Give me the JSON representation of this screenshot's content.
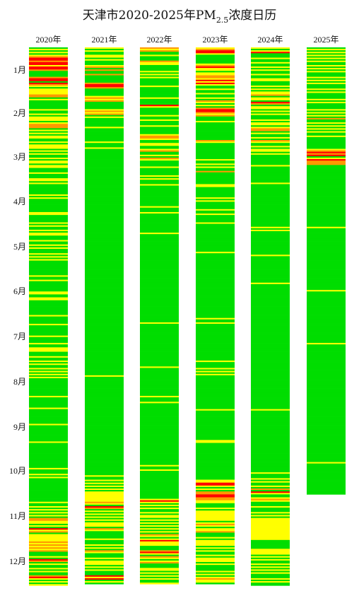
{
  "chart_data": {
    "type": "heatmap",
    "title": {
      "prefix": "天津市2020-2025年PM",
      "subscript": "2.5",
      "suffix": "浓度日历"
    },
    "years": [
      "2020年",
      "2021年",
      "2022年",
      "2023年",
      "2024年",
      "2025年"
    ],
    "months": [
      "1月",
      "2月",
      "3月",
      "4月",
      "5月",
      "6月",
      "7月",
      "8月",
      "9月",
      "10月",
      "11月",
      "12月"
    ],
    "colors": {
      "good": "#00dd00",
      "moderate": "#ffff00",
      "light": "#ff9900",
      "medium": "#ff0000",
      "heavy": "#990033"
    },
    "legend_order": [
      "good",
      "moderate",
      "light",
      "medium",
      "heavy"
    ],
    "days_recorded": [
      366,
      365,
      365,
      365,
      366,
      304
    ],
    "daily_levels": [
      "1212123443442443111134414321222233121111112112122212333121212211212221212112122122111211122121111111212111111111221111121211212211121121211121212111111111121121111111221122111111111121111121111111211112112221112112121121212121111111111112111111121111111111211111111111211111111111111111211121211111111111111112112121212133221214231222223232323111214312112121134212122211111212311121213211",
      "2121122121112313113111113443111112323111112323121111112111111111211121111111111111111111111111111111111111111111111111111111111111111111111111111111111111111111111111111111111111111111111111111111111111111111111111111111111211111111111111111111111111111111111111111111111111111111111111111112112121212122222223214312121212122213211111211121213211121222121211142412121121112121312121211111",
      "3231121113221111212121111121111111211114211111211211121111123321122112311213211112111112121112111111111111112111211111111111112111111111111111111111111111111111111111111111111111111111111211111111111111111111111111111211111111111111111112111211111111111111111111111111111111111111111121121111111111111111111242121211212212121212121321242221113421321231112212121211212321121211111",
      "2344211111123422122332424211211211213212134432311121111111111113211111111111211212113111111112211111112121111121121111121111111111111111111211111111111111111111111111111111111111111111211211111111111111111111111112111121212111111111111111111111112111111111111111111112211111111111111111111111112244212133443322111212222222123212231112122221212112122212111121212322112121211111",
      "2124111211211212112112211121212231221431221212111212212331211213211212212111111121111111111121111111111111111111111111111121211111111111111112111111111111111111211111111111111111111111111111111111111111111111111111111111111111111111111111111111112111111111111111111111111111111111111111111211121211213142112321112111212122222222222222211111122221212112121212111212111212122112111111",
      "1212121212112121211121212111212111121211112121213112121212112111111112343412433311111111111111111111111111111111111111111121111111111111111111111111111111111111111112111111111111111111111111111111111112111111111111111111111111111111111111111111111111111111111111111111111111111111112111111111111111111111"
    ]
  }
}
